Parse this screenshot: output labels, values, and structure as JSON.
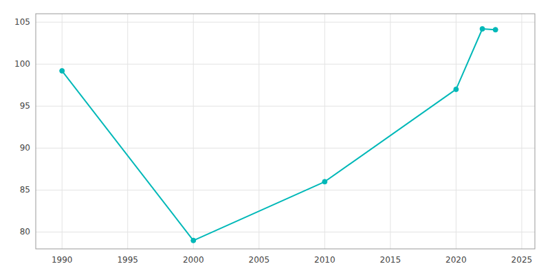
{
  "chart_data": {
    "type": "line",
    "x": [
      1990,
      2000,
      2010,
      2020,
      2022,
      2023
    ],
    "values": [
      99.2,
      79.0,
      86.0,
      97.0,
      104.2,
      104.1
    ],
    "color": "#00b8b8",
    "marker": "circle",
    "xlim": [
      1988,
      2026
    ],
    "ylim": [
      78,
      106
    ],
    "xticks": [
      1990,
      1995,
      2000,
      2005,
      2010,
      2015,
      2020,
      2025
    ],
    "yticks": [
      80,
      85,
      90,
      95,
      100,
      105
    ],
    "grid": true
  }
}
